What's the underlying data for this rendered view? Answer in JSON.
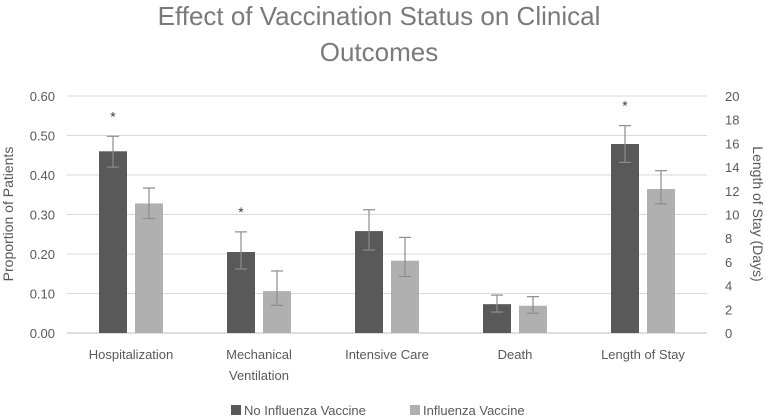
{
  "chart_data": {
    "type": "bar",
    "title_lines": [
      "Effect of Vaccination Status on Clinical",
      "Outcomes"
    ],
    "ylabel": "Proportion of Patients",
    "y2label": "Length of Stay (Days)",
    "ylim": [
      0,
      0.6
    ],
    "y2lim": [
      0,
      20
    ],
    "yticks": [
      "0.00",
      "0.10",
      "0.20",
      "0.30",
      "0.40",
      "0.50",
      "0.60"
    ],
    "y2ticks": [
      "0",
      "2",
      "4",
      "6",
      "8",
      "10",
      "12",
      "14",
      "16",
      "18",
      "20"
    ],
    "categories": [
      {
        "lines": [
          "Hospitalization"
        ],
        "axis": "left",
        "significance": "*"
      },
      {
        "lines": [
          "Mechanical",
          "Ventilation"
        ],
        "axis": "left",
        "significance": "*"
      },
      {
        "lines": [
          "Intensive Care"
        ],
        "axis": "left",
        "significance": ""
      },
      {
        "lines": [
          "Death"
        ],
        "axis": "left",
        "significance": ""
      },
      {
        "lines": [
          "Length of Stay"
        ],
        "axis": "right",
        "significance": "*"
      }
    ],
    "series": [
      {
        "name": "No Influenza Vaccine",
        "color": "#595959",
        "values": [
          0.46,
          0.205,
          0.258,
          0.073,
          15.95
        ],
        "error_low": [
          0.42,
          0.162,
          0.21,
          0.053,
          14.4
        ],
        "error_high": [
          0.498,
          0.256,
          0.312,
          0.096,
          17.5
        ]
      },
      {
        "name": "Influenza Vaccine",
        "color": "#b0b0b0",
        "values": [
          0.328,
          0.106,
          0.183,
          0.069,
          12.15
        ],
        "error_low": [
          0.29,
          0.07,
          0.143,
          0.05,
          10.9
        ],
        "error_high": [
          0.367,
          0.157,
          0.242,
          0.092,
          13.7
        ]
      }
    ],
    "legend_position": "bottom"
  }
}
